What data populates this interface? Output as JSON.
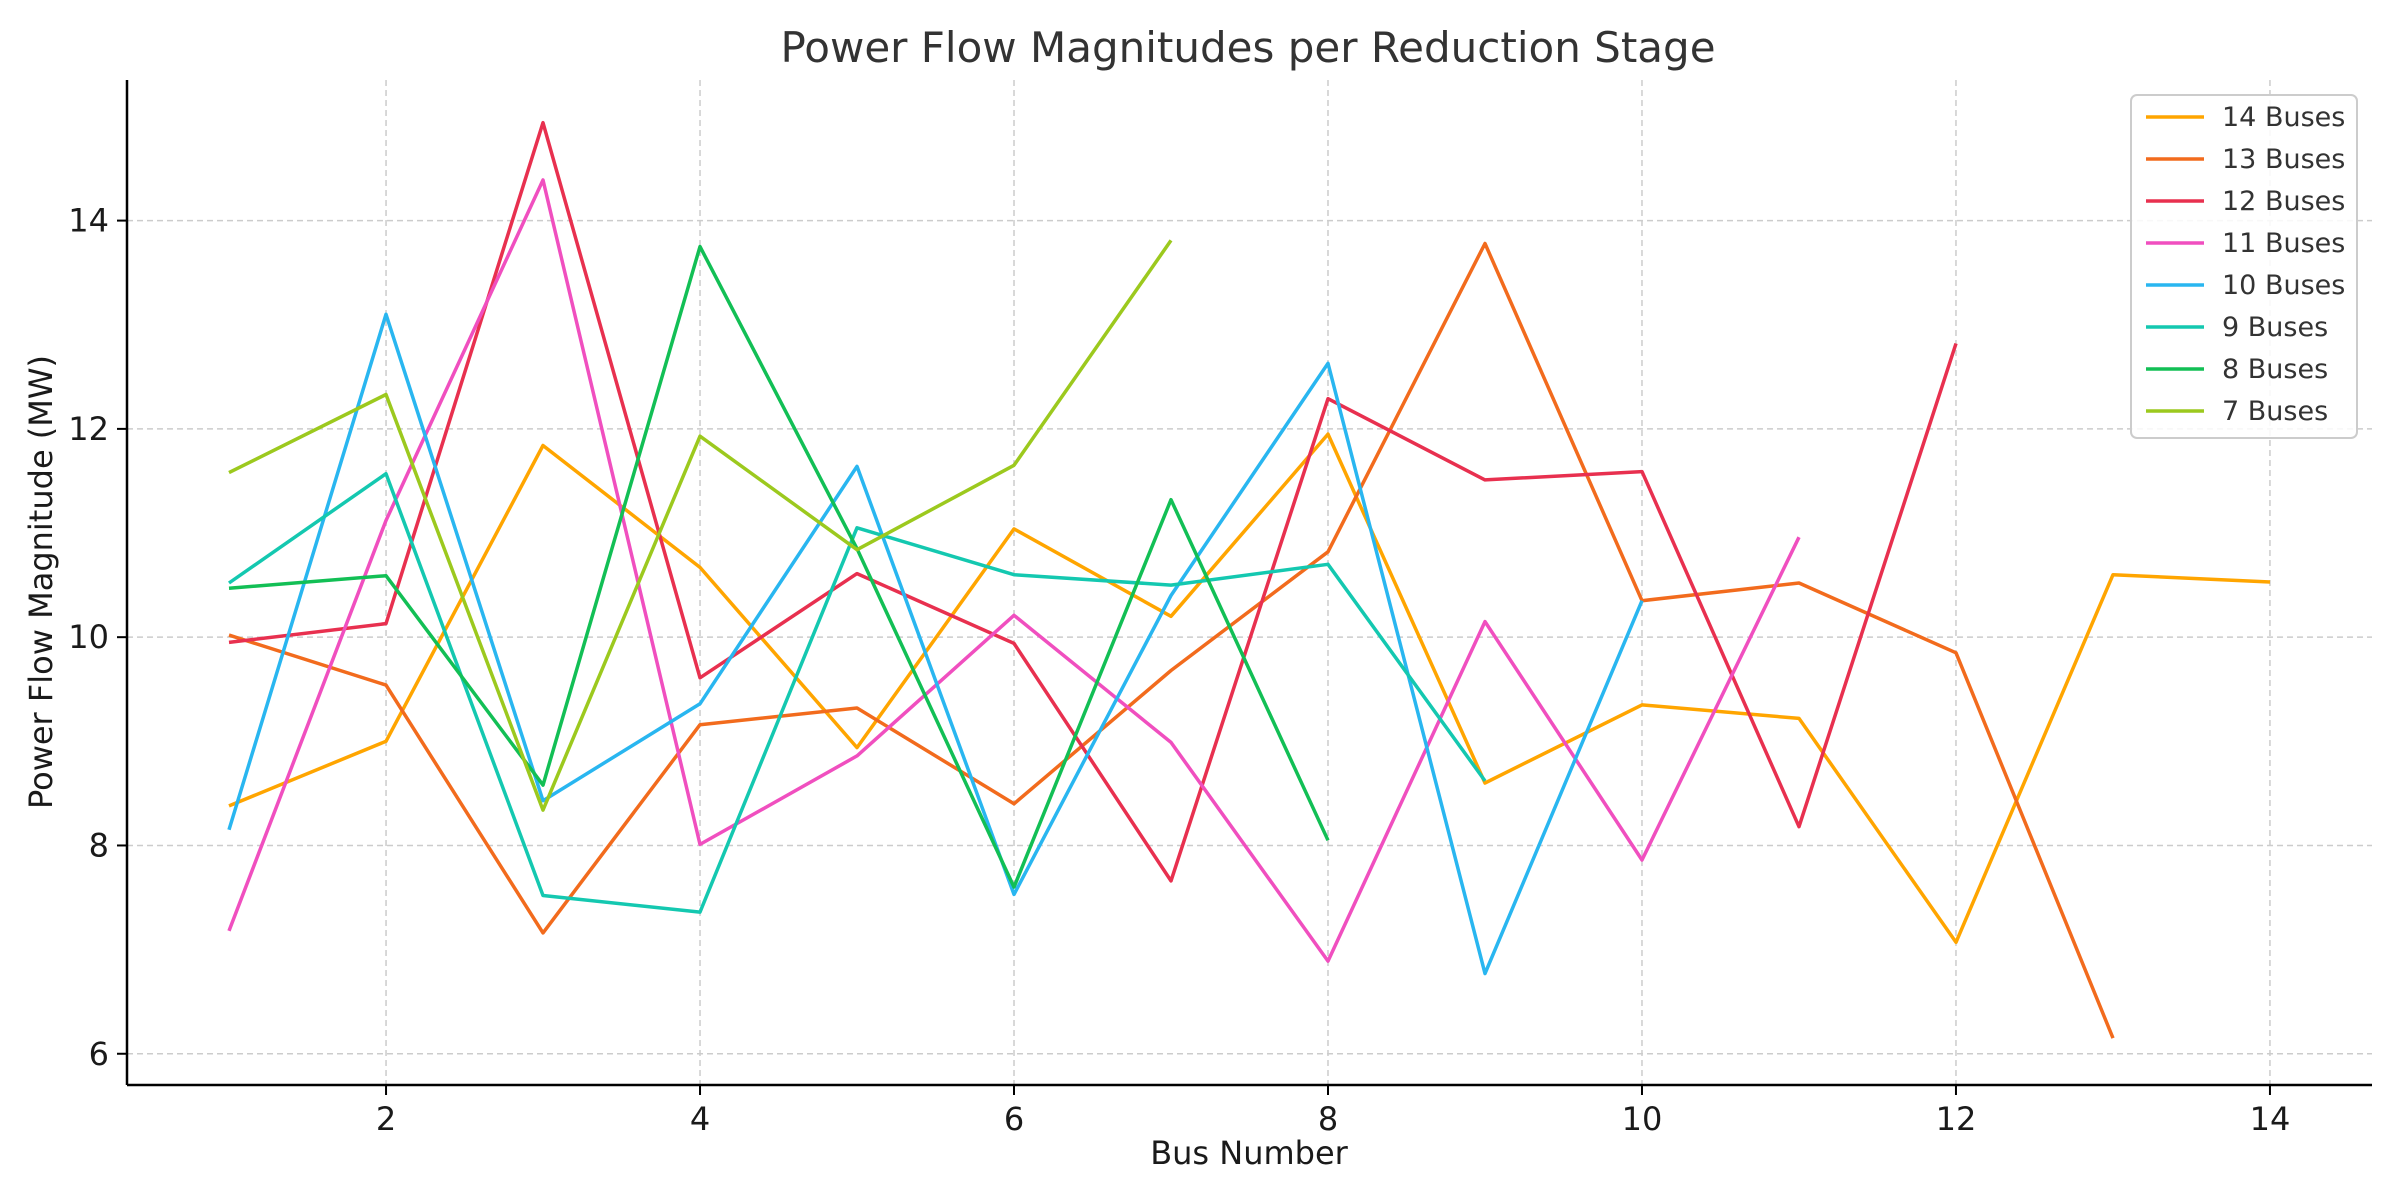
{
  "chart_data": {
    "type": "line",
    "title": "Power Flow Magnitudes per Reduction Stage",
    "xlabel": "Bus Number",
    "ylabel": "Power Flow Magnitude (MW)",
    "xlim": [
      0.35,
      14.65
    ],
    "ylim": [
      5.7,
      15.35
    ],
    "xticks": [
      2,
      4,
      6,
      8,
      10,
      12,
      14
    ],
    "yticks": [
      6,
      8,
      10,
      12,
      14
    ],
    "grid": true,
    "legend_position": "top-right",
    "series": [
      {
        "name": "14 Buses",
        "color": "#FFA500",
        "x": [
          1,
          2,
          3,
          4,
          5,
          6,
          7,
          8,
          9,
          10,
          11,
          12,
          13,
          14
        ],
        "values": [
          8.38,
          9.0,
          11.84,
          10.67,
          8.94,
          11.04,
          10.2,
          11.95,
          8.6,
          9.35,
          9.22,
          7.07,
          10.6,
          10.53
        ]
      },
      {
        "name": "13 Buses",
        "color": "#F26B1D",
        "x": [
          1,
          2,
          3,
          4,
          5,
          6,
          7,
          8,
          9,
          10,
          11,
          12,
          13
        ],
        "values": [
          10.02,
          9.54,
          7.16,
          9.16,
          9.32,
          8.4,
          9.68,
          10.82,
          13.78,
          10.35,
          10.52,
          9.85,
          6.15
        ]
      },
      {
        "name": "12 Buses",
        "color": "#E8304F",
        "x": [
          1,
          2,
          3,
          4,
          5,
          6,
          7,
          8,
          9,
          10,
          11,
          12
        ],
        "values": [
          9.95,
          10.13,
          14.94,
          9.61,
          10.61,
          9.94,
          7.66,
          12.29,
          11.51,
          11.59,
          8.18,
          12.82
        ]
      },
      {
        "name": "11 Buses",
        "color": "#F04FBF",
        "x": [
          1,
          2,
          3,
          4,
          5,
          6,
          7,
          8,
          9,
          10,
          11
        ],
        "values": [
          7.18,
          11.12,
          14.39,
          8.01,
          8.86,
          10.21,
          8.99,
          6.89,
          10.15,
          7.86,
          10.96
        ]
      },
      {
        "name": "10 Buses",
        "color": "#29B6F0",
        "x": [
          1,
          2,
          3,
          4,
          5,
          6,
          7,
          8,
          9,
          10
        ],
        "values": [
          8.15,
          13.1,
          8.43,
          9.36,
          11.64,
          7.53,
          10.4,
          12.63,
          6.77,
          10.35
        ]
      },
      {
        "name": "9 Buses",
        "color": "#14C8B0",
        "x": [
          1,
          2,
          3,
          4,
          5,
          6,
          7,
          8,
          9
        ],
        "values": [
          10.52,
          11.57,
          7.52,
          7.36,
          11.05,
          10.6,
          10.5,
          10.7,
          8.62
        ]
      },
      {
        "name": "8 Buses",
        "color": "#12BF55",
        "x": [
          1,
          2,
          3,
          4,
          5,
          6,
          7,
          8
        ],
        "values": [
          10.47,
          10.59,
          8.58,
          13.75,
          10.85,
          7.6,
          11.32,
          8.05
        ]
      },
      {
        "name": "7 Buses",
        "color": "#9CC91E",
        "x": [
          1,
          2,
          3,
          4,
          5,
          6,
          7
        ],
        "values": [
          11.58,
          12.33,
          8.34,
          11.93,
          10.84,
          11.65,
          13.81
        ]
      }
    ]
  }
}
